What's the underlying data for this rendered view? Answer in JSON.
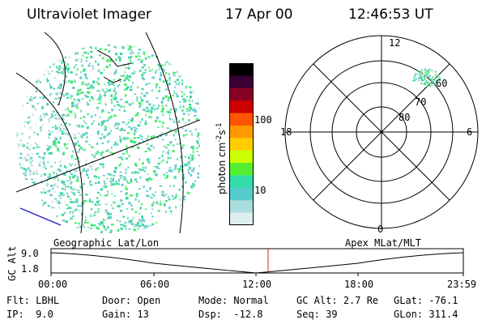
{
  "header": {
    "instrument": "Ultraviolet Imager",
    "date": "17 Apr 00",
    "time": "12:46:53 UT"
  },
  "colorbar": {
    "label": "photon cm",
    "label_sup1": "-2",
    "label_mid": "s",
    "label_sup2": "-1",
    "ticks": [
      "100",
      "10"
    ],
    "colors": [
      "#000000",
      "#3b0033",
      "#880022",
      "#cc0000",
      "#ff5500",
      "#ff9900",
      "#ffcc00",
      "#ccff00",
      "#55ee33",
      "#33ddaa",
      "#55cccc",
      "#aadddd",
      "#ddeeee"
    ]
  },
  "polar_plot": {
    "labels": {
      "top": "12",
      "left": "18",
      "right": "6",
      "bottom": "0"
    },
    "rings": [
      "60",
      "70",
      "80"
    ]
  },
  "coord_labels": {
    "left": "Geographic Lat/Lon",
    "right": "Apex MLat/MLT"
  },
  "altitude_plot": {
    "ylabel": "GC Alt",
    "yticks": [
      "9.0",
      "1.8"
    ],
    "xticks": [
      "00:00",
      "06:00",
      "12:00",
      "18:00",
      "23:59"
    ]
  },
  "info": {
    "filter_label": "Flt:",
    "filter_value": "LBHL",
    "ip_label": "IP:",
    "ip_value": "9.0",
    "door_label": "Door:",
    "door_value": "Open",
    "gain_label": "Gain:",
    "gain_value": "13",
    "mode_label": "Mode:",
    "mode_value": "Normal",
    "dsp_label": "Dsp:",
    "dsp_value": "-12.8",
    "gcalt_label": "GC Alt:",
    "gcalt_value": "2.7 Re",
    "seq_label": "Seq:",
    "seq_value": "39",
    "glat_label": "GLat:",
    "glat_value": "-76.1",
    "glon_label": "GLon:",
    "glon_value": "311.4"
  }
}
